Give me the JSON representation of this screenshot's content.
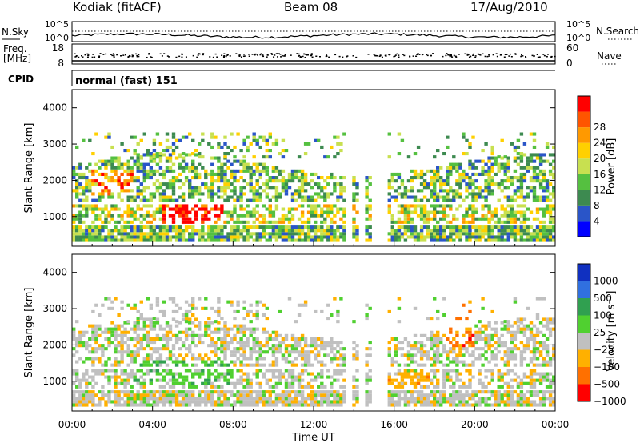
{
  "header": {
    "station": "Kodiak (fitACF)",
    "beam": "Beam 08",
    "date": "17/Aug/2010"
  },
  "status_panels": {
    "nsky_label": "N.Sky",
    "nsky_ticks": [
      "10^5",
      "10^0"
    ],
    "nsearch_label": "N.Search",
    "nsearch_ticks": [
      "10^5",
      "10^0"
    ],
    "freq_label_line1": "Freq.",
    "freq_label_line2": "[MHz]",
    "freq_ticks": [
      "18",
      "8"
    ],
    "nave_label": "Nave",
    "nave_ticks": [
      "60",
      "0"
    ],
    "cpid_label": "CPID",
    "cpid_value": "normal (fast) 151"
  },
  "chart_data": [
    {
      "type": "heatmap",
      "panel": "power",
      "ylabel": "Slant Range [km]",
      "ylim": [
        180,
        4500
      ],
      "yticks": [
        "1000",
        "2000",
        "3000",
        "4000"
      ],
      "colorbar_label": "Power [dB]",
      "colorbar_ticks": [
        "4",
        "8",
        "12",
        "16",
        "20",
        "24",
        "28"
      ],
      "colors": [
        "#0000ff",
        "#2a55c8",
        "#3d8a50",
        "#55c040",
        "#c8e050",
        "#ffd000",
        "#ff9900",
        "#ff5500",
        "#ff0000"
      ],
      "data_gaps_ut_hours": [
        [
          13.6,
          13.9
        ],
        [
          14.3,
          14.55
        ],
        [
          14.85,
          15.6
        ]
      ]
    },
    {
      "type": "heatmap",
      "panel": "velocity",
      "ylabel": "Slant Range [km]",
      "ylim": [
        180,
        4500
      ],
      "yticks": [
        "1000",
        "2000",
        "3000",
        "4000"
      ],
      "colorbar_label": "Velocity [m s⁻¹]",
      "colorbar_ticks": [
        "1000",
        "500",
        "100",
        "25",
        "−25",
        "−100",
        "−500",
        "−1000"
      ],
      "colors": [
        "#1030c0",
        "#3070e0",
        "#30a050",
        "#50d030",
        "#c0c0c0",
        "#ffb000",
        "#ff7000",
        "#ff0000"
      ],
      "data_gaps_ut_hours": [
        [
          13.6,
          13.9
        ],
        [
          14.3,
          14.55
        ],
        [
          14.85,
          15.6
        ]
      ]
    }
  ],
  "x_axis": {
    "label": "Time UT",
    "ticks": [
      "00:00",
      "04:00",
      "08:00",
      "12:00",
      "16:00",
      "20:00",
      "00:00"
    ]
  }
}
